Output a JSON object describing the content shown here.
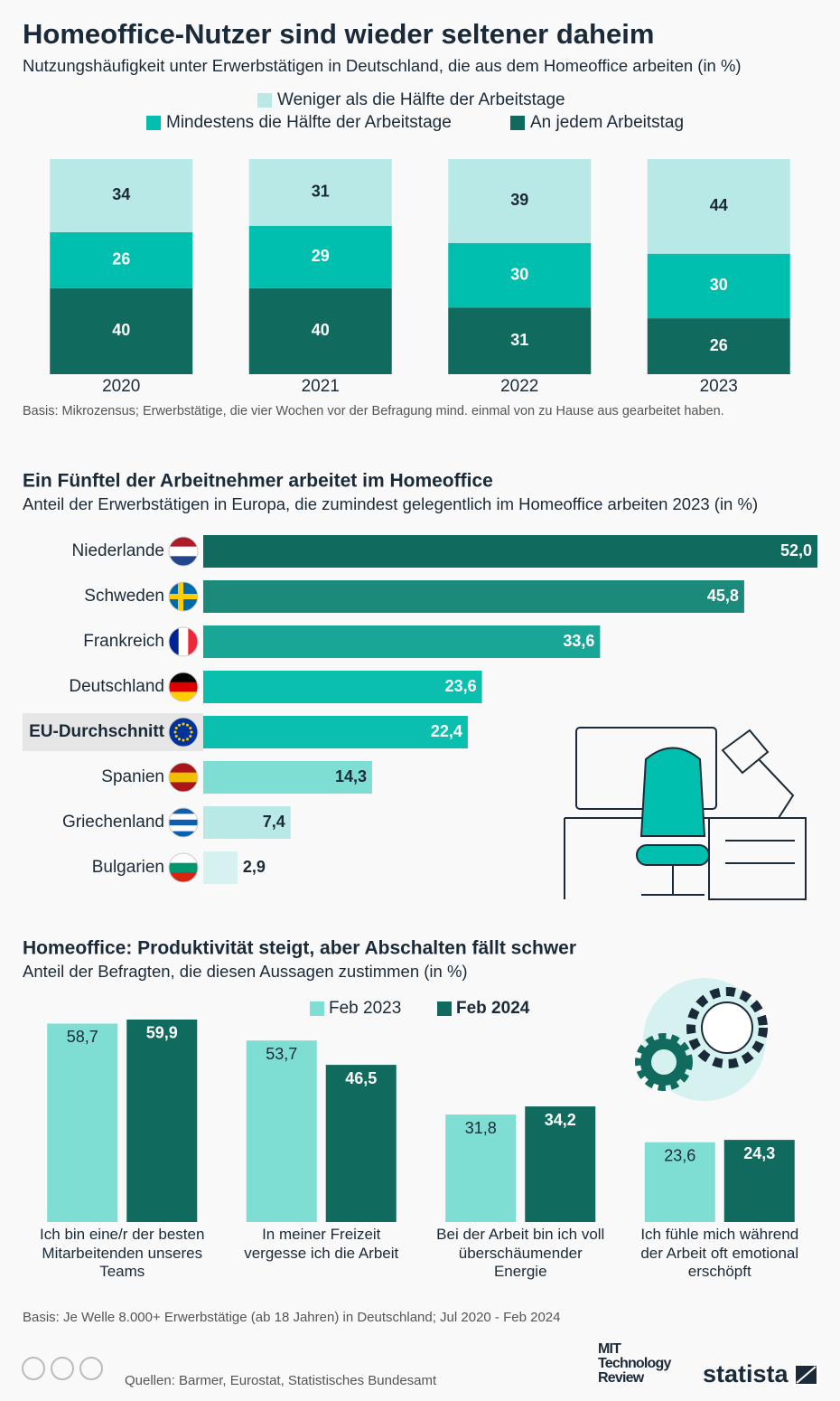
{
  "chart_data": [
    {
      "type": "stacked_bar",
      "title": "Homeoffice-Nutzer sind wieder seltener daheim",
      "subtitle": "Nutzungshäufigkeit unter Erwerbstätigen in Deutschland, die aus dem Homeoffice arbeiten (in %)",
      "categories": [
        "2020",
        "2021",
        "2022",
        "2023"
      ],
      "series": [
        {
          "name": "Weniger als die Hälfte der Arbeitstage",
          "color": "#b9e9e6",
          "values": [
            34,
            31,
            39,
            44
          ]
        },
        {
          "name": "Mindestens die Hälfte der Arbeitstage",
          "color": "#00bfae",
          "values": [
            26,
            29,
            30,
            30
          ]
        },
        {
          "name": "An jedem Arbeitstag",
          "color": "#116a5e",
          "values": [
            40,
            40,
            31,
            26
          ]
        }
      ],
      "ylim": [
        0,
        100
      ],
      "note": "Basis: Mikrozensus; Erwerbstätige, die vier Wochen vor der Befragung mind. einmal von zu Hause aus gearbeitet haben."
    },
    {
      "type": "horizontal_bar",
      "title": "Ein Fünftel der Arbeitnehmer arbeitet im Homeoffice",
      "subtitle": "Anteil der Erwerbstätigen in Europa, die zumindest gelegentlich im Homeoffice arbeiten 2023 (in %)",
      "categories": [
        "Niederlande",
        "Schweden",
        "Frankreich",
        "Deutschland",
        "EU-Durchschnitt",
        "Spanien",
        "Griechenland",
        "Bulgarien"
      ],
      "values": [
        52.0,
        45.8,
        33.6,
        23.6,
        22.4,
        14.3,
        7.4,
        2.9
      ],
      "value_labels": [
        "52,0",
        "45,8",
        "33,6",
        "23,6",
        "22,4",
        "14,3",
        "7,4",
        "2,9"
      ],
      "colors": [
        "#116a5e",
        "#1b8a7b",
        "#1aa697",
        "#0bbfae",
        "#0bbfae",
        "#7fded4",
        "#b9e9e6",
        "#d6f2f0"
      ],
      "xlim": [
        0,
        52
      ]
    },
    {
      "type": "grouped_bar",
      "title": "Homeoffice: Produktivität steigt, aber Abschalten fällt schwer",
      "subtitle": "Anteil der Befragten, die diesen Aussagen zustimmen (in %)",
      "categories": [
        "Ich bin eine/r der besten Mitarbeitenden unseres Teams",
        "In meiner Freizeit vergesse ich die Arbeit",
        "Bei der Arbeit bin ich voll überschäumender Energie",
        "Ich fühle mich während der Arbeit oft emotional erschöpft"
      ],
      "series": [
        {
          "name": "Feb 2023",
          "color": "#7fded4",
          "values": [
            58.7,
            53.7,
            31.8,
            23.6
          ],
          "value_labels": [
            "58,7",
            "53,7",
            "31,8",
            "23,6"
          ]
        },
        {
          "name": "Feb 2024",
          "color": "#116a5e",
          "values": [
            59.9,
            46.5,
            34.2,
            24.3
          ],
          "value_labels": [
            "59,9",
            "46,5",
            "34,2",
            "24,3"
          ]
        }
      ],
      "ylim": [
        0,
        60
      ],
      "note": "Basis: Je Welle 8.000+ Erwerbstätige (ab 18 Jahren) in Deutschland; Jul 2020 - Feb 2024"
    }
  ],
  "footer": {
    "source": "Quellen: Barmer, Eurostat, Statistisches Bundesamt",
    "logos": [
      "MIT Technology Review",
      "statista"
    ]
  }
}
